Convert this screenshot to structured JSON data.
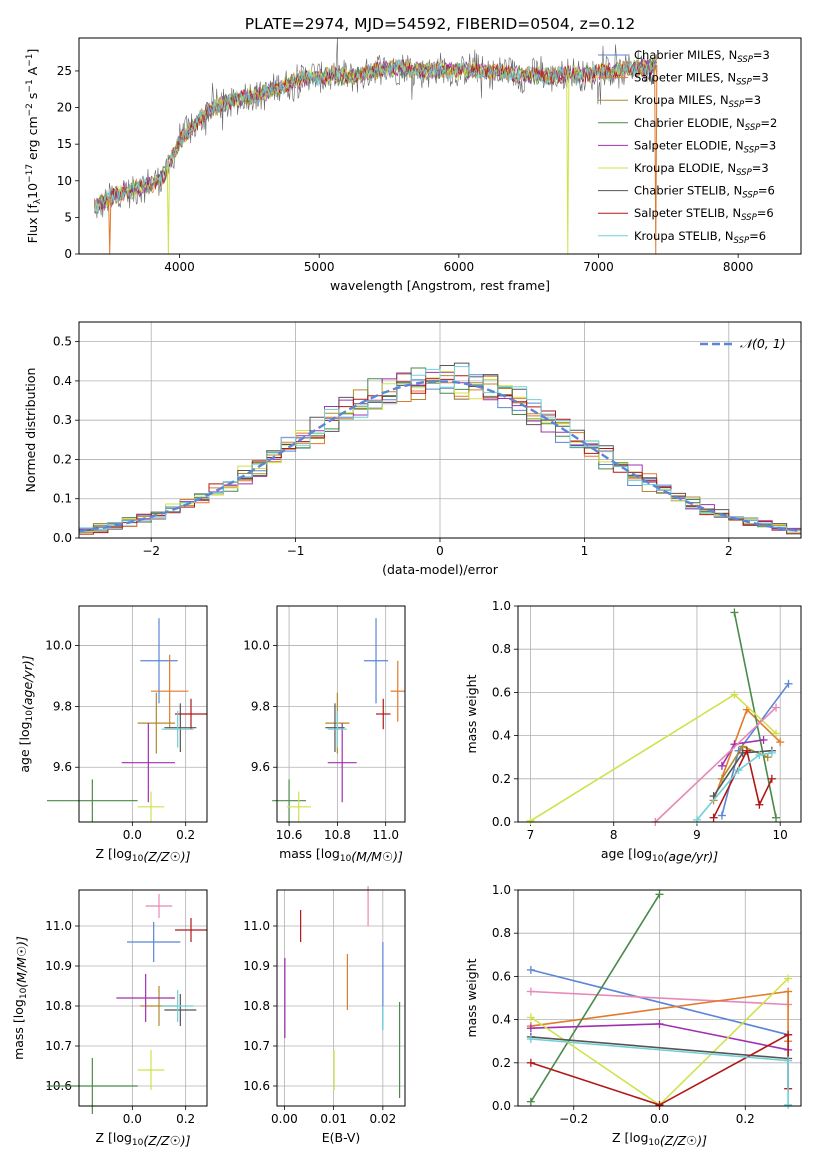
{
  "figure": {
    "title": "PLATE=2974, MJD=54592, FIBERID=0504, z=0.12"
  },
  "colors": {
    "chabrier_miles": "#5b86d6",
    "salpeter_miles": "#e27a2c",
    "kroupa_miles": "#b08a2e",
    "chabrier_elodie": "#4a8a4a",
    "salpeter_elodie": "#a030b0",
    "kroupa_elodie": "#cfe24a",
    "chabrier_stelib": "#555555",
    "salpeter_stelib": "#b01818",
    "kroupa_stelib": "#6fd0d8",
    "pink": "#e888b8",
    "normal_curve": "#5b86d6"
  },
  "chart_data": [
    {
      "id": "spectrum",
      "type": "line",
      "xlabel": "wavelength [Angstrom, rest frame]",
      "ylabel": "Flux [f_λ10^-17 erg cm^-2 s^-1 A^-1]",
      "xlim": [
        3280,
        8450
      ],
      "ylim": [
        0,
        29.5
      ],
      "xticks": [
        4000,
        5000,
        6000,
        7000,
        8000
      ],
      "yticks": [
        0,
        5,
        10,
        15,
        20,
        25
      ],
      "legend_position": "upper-right",
      "legend": [
        {
          "key": "chabrier_miles",
          "label": "Chabrier MILES, N",
          "sub": "SSP",
          "suffix": "=3"
        },
        {
          "key": "salpeter_miles",
          "label": "Salpeter MILES, N",
          "sub": "SSP",
          "suffix": "=3"
        },
        {
          "key": "kroupa_miles",
          "label": "Kroupa MILES, N",
          "sub": "SSP",
          "suffix": "=3"
        },
        {
          "key": "chabrier_elodie",
          "label": "Chabrier ELODIE, N",
          "sub": "SSP",
          "suffix": "=2"
        },
        {
          "key": "salpeter_elodie",
          "label": "Salpeter ELODIE, N",
          "sub": "SSP",
          "suffix": "=3"
        },
        {
          "key": "kroupa_elodie",
          "label": "Kroupa ELODIE, N",
          "sub": "SSP",
          "suffix": "=3"
        },
        {
          "key": "chabrier_stelib",
          "label": "Chabrier STELIB, N",
          "sub": "SSP",
          "suffix": "=6"
        },
        {
          "key": "salpeter_stelib",
          "label": "Salpeter STELIB, N",
          "sub": "SSP",
          "suffix": "=6"
        },
        {
          "key": "kroupa_stelib",
          "label": "Kroupa STELIB, N",
          "sub": "SSP",
          "suffix": "=6"
        }
      ],
      "continuum": [
        [
          3390,
          6.5
        ],
        [
          3500,
          7.5
        ],
        [
          3600,
          8.5
        ],
        [
          3700,
          9
        ],
        [
          3800,
          9.5
        ],
        [
          3900,
          11
        ],
        [
          4000,
          15.5
        ],
        [
          4100,
          17.5
        ],
        [
          4200,
          19.5
        ],
        [
          4300,
          20.5
        ],
        [
          4400,
          21
        ],
        [
          4500,
          21.5
        ],
        [
          4600,
          22
        ],
        [
          4700,
          22.5
        ],
        [
          4800,
          23.5
        ],
        [
          4900,
          24
        ],
        [
          5000,
          24.2
        ],
        [
          5100,
          24.5
        ],
        [
          5200,
          24
        ],
        [
          5300,
          24.5
        ],
        [
          5400,
          25
        ],
        [
          5500,
          25.5
        ],
        [
          5600,
          25.3
        ],
        [
          5800,
          25
        ],
        [
          6000,
          25.2
        ],
        [
          6200,
          25
        ],
        [
          6400,
          24.6
        ],
        [
          6600,
          24.3
        ],
        [
          6800,
          24.5
        ],
        [
          7000,
          24.7
        ],
        [
          7200,
          25.2
        ],
        [
          7420,
          25.8
        ]
      ],
      "dips": [
        {
          "x": 3500,
          "y": 0,
          "series": "salpeter_miles"
        },
        {
          "x": 3920,
          "y": 0,
          "series": "kroupa_elodie"
        },
        {
          "x": 6780,
          "y": 0,
          "series": "kroupa_elodie"
        },
        {
          "x": 7410,
          "y": 0,
          "series": "salpeter_miles"
        }
      ]
    },
    {
      "id": "residuals",
      "type": "histogram",
      "xlabel": "(data-model)/error",
      "ylabel": "Normed distribution",
      "xlim": [
        -2.5,
        2.5
      ],
      "ylim": [
        0,
        0.55
      ],
      "xticks": [
        -2,
        -1,
        0,
        1,
        2
      ],
      "yticks": [
        0.0,
        0.1,
        0.2,
        0.3,
        0.4,
        0.5
      ],
      "grid": true,
      "bin_width": 0.1,
      "normal_label": "𝒩(0, 1)",
      "legend_position": "upper-right",
      "series_keys": [
        "chabrier_miles",
        "salpeter_miles",
        "kroupa_miles",
        "chabrier_elodie",
        "salpeter_elodie",
        "kroupa_elodie",
        "chabrier_stelib",
        "salpeter_stelib",
        "kroupa_stelib"
      ]
    },
    {
      "id": "age_vs_Z",
      "type": "errorbar",
      "xlabel": "Z [log10(Z/Z☉)]",
      "ylabel": "age  [log10(age/yr)]",
      "xlim": [
        -0.2,
        0.28
      ],
      "ylim": [
        9.42,
        10.13
      ],
      "xticks": [
        0.0,
        0.2
      ],
      "yticks": [
        9.6,
        9.8,
        10.0
      ],
      "grid": true,
      "points": [
        {
          "key": "chabrier_miles",
          "x": 0.1,
          "xerr": 0.07,
          "y": 9.95,
          "yerr": 0.14
        },
        {
          "key": "salpeter_miles",
          "x": 0.14,
          "xerr": 0.07,
          "y": 9.85,
          "yerr": 0.12
        },
        {
          "key": "kroupa_miles",
          "x": 0.09,
          "xerr": 0.07,
          "y": 9.745,
          "yerr": 0.1
        },
        {
          "key": "chabrier_elodie",
          "x": -0.15,
          "xerr": 0.17,
          "y": 9.49,
          "yerr": 0.07
        },
        {
          "key": "salpeter_elodie",
          "x": 0.06,
          "xerr": 0.1,
          "y": 9.615,
          "yerr": 0.13
        },
        {
          "key": "kroupa_elodie",
          "x": 0.07,
          "xerr": 0.05,
          "y": 9.47,
          "yerr": 0.05
        },
        {
          "key": "chabrier_stelib",
          "x": 0.18,
          "xerr": 0.06,
          "y": 9.73,
          "yerr": 0.08
        },
        {
          "key": "salpeter_stelib",
          "x": 0.22,
          "xerr": 0.06,
          "y": 9.775,
          "yerr": 0.05
        },
        {
          "key": "kroupa_stelib",
          "x": 0.17,
          "xerr": 0.06,
          "y": 9.725,
          "yerr": 0.06
        }
      ]
    },
    {
      "id": "age_vs_mass",
      "type": "errorbar",
      "xlabel": "mass [log10(M/M☉)]",
      "ylabel": "",
      "xlim": [
        10.55,
        11.08
      ],
      "ylim": [
        9.42,
        10.13
      ],
      "xticks": [
        10.6,
        10.8,
        11.0
      ],
      "yticks": [
        9.6,
        9.8,
        10.0
      ],
      "grid": true,
      "points": [
        {
          "key": "chabrier_miles",
          "x": 10.96,
          "xerr": 0.05,
          "y": 9.95,
          "yerr": 0.14
        },
        {
          "key": "salpeter_miles",
          "x": 11.05,
          "xerr": 0.03,
          "y": 9.85,
          "yerr": 0.1
        },
        {
          "key": "kroupa_miles",
          "x": 10.8,
          "xerr": 0.05,
          "y": 9.745,
          "yerr": 0.1
        },
        {
          "key": "chabrier_elodie",
          "x": 10.6,
          "xerr": 0.07,
          "y": 9.49,
          "yerr": 0.07
        },
        {
          "key": "salpeter_elodie",
          "x": 10.82,
          "xerr": 0.06,
          "y": 9.615,
          "yerr": 0.13
        },
        {
          "key": "kroupa_elodie",
          "x": 10.64,
          "xerr": 0.05,
          "y": 9.47,
          "yerr": 0.05
        },
        {
          "key": "chabrier_stelib",
          "x": 10.79,
          "xerr": 0.04,
          "y": 9.73,
          "yerr": 0.08
        },
        {
          "key": "salpeter_stelib",
          "x": 10.99,
          "xerr": 0.03,
          "y": 9.775,
          "yerr": 0.05
        },
        {
          "key": "kroupa_stelib",
          "x": 10.8,
          "xerr": 0.04,
          "y": 9.725,
          "yerr": 0.06
        }
      ]
    },
    {
      "id": "weight_vs_age",
      "type": "line",
      "xlabel": "age  [log10(age/yr)]",
      "ylabel": "mass weight",
      "xlim": [
        6.85,
        10.25
      ],
      "ylim": [
        0,
        1
      ],
      "xticks": [
        7,
        8,
        9,
        10
      ],
      "yticks": [
        0.0,
        0.2,
        0.4,
        0.6,
        0.8,
        1.0
      ],
      "grid": true,
      "series": [
        {
          "key": "chabrier_miles",
          "x": [
            9.3,
            9.5,
            10.1
          ],
          "y": [
            0.03,
            0.33,
            0.64
          ]
        },
        {
          "key": "salpeter_miles",
          "x": [
            9.2,
            9.6,
            10.0
          ],
          "y": [
            0.1,
            0.52,
            0.37
          ]
        },
        {
          "key": "kroupa_miles",
          "x": [
            9.3,
            9.55,
            9.85
          ],
          "y": [
            0.2,
            0.35,
            0.3
          ]
        },
        {
          "key": "chabrier_elodie",
          "x": [
            9.45,
            9.95
          ],
          "y": [
            0.97,
            0.02
          ]
        },
        {
          "key": "salpeter_elodie",
          "x": [
            9.3,
            9.45,
            9.8
          ],
          "y": [
            0.26,
            0.36,
            0.38
          ]
        },
        {
          "key": "kroupa_elodie",
          "x": [
            7.0,
            9.45,
            9.95
          ],
          "y": [
            0.005,
            0.59,
            0.41
          ]
        },
        {
          "key": "chabrier_stelib",
          "x": [
            9.2,
            9.55,
            9.9
          ],
          "y": [
            0.12,
            0.32,
            0.33
          ]
        },
        {
          "key": "salpeter_stelib",
          "x": [
            9.2,
            9.6,
            9.75,
            9.9
          ],
          "y": [
            0.02,
            0.33,
            0.08,
            0.2
          ]
        },
        {
          "key": "kroupa_stelib",
          "x": [
            9.0,
            9.5,
            9.75,
            9.9
          ],
          "y": [
            0.01,
            0.24,
            0.31,
            0.32
          ]
        },
        {
          "key": "pink",
          "x": [
            8.5,
            9.95
          ],
          "y": [
            0.0,
            0.53
          ]
        }
      ]
    },
    {
      "id": "mass_vs_Z",
      "type": "errorbar",
      "xlabel": "Z [log10(Z/Z☉)]",
      "ylabel": "mass [log10(M/M☉)]",
      "xlim": [
        -0.2,
        0.28
      ],
      "ylim": [
        10.55,
        11.09
      ],
      "xticks": [
        0.0,
        0.2
      ],
      "yticks": [
        10.6,
        10.7,
        10.8,
        10.9,
        11.0
      ],
      "grid": true,
      "points": [
        {
          "key": "chabrier_miles",
          "x": 0.08,
          "xerr": 0.1,
          "y": 10.96,
          "yerr": 0.05
        },
        {
          "key": "pink",
          "x": 0.1,
          "xerr": 0.05,
          "y": 11.05,
          "yerr": 0.03
        },
        {
          "key": "kroupa_miles",
          "x": 0.1,
          "xerr": 0.07,
          "y": 10.8,
          "yerr": 0.05
        },
        {
          "key": "chabrier_elodie",
          "x": -0.15,
          "xerr": 0.17,
          "y": 10.6,
          "yerr": 0.07
        },
        {
          "key": "salpeter_elodie",
          "x": 0.05,
          "xerr": 0.11,
          "y": 10.82,
          "yerr": 0.06
        },
        {
          "key": "kroupa_elodie",
          "x": 0.07,
          "xerr": 0.05,
          "y": 10.64,
          "yerr": 0.05
        },
        {
          "key": "chabrier_stelib",
          "x": 0.18,
          "xerr": 0.06,
          "y": 10.79,
          "yerr": 0.04
        },
        {
          "key": "salpeter_stelib",
          "x": 0.22,
          "xerr": 0.06,
          "y": 10.99,
          "yerr": 0.03
        },
        {
          "key": "kroupa_stelib",
          "x": 0.17,
          "xerr": 0.06,
          "y": 10.8,
          "yerr": 0.04
        }
      ]
    },
    {
      "id": "mass_vs_EBV",
      "type": "errorbar",
      "xlabel": "E(B-V)",
      "ylabel": "",
      "xlim": [
        -0.0015,
        0.0245
      ],
      "ylim": [
        10.55,
        11.09
      ],
      "xticks": [
        0.0,
        0.01,
        0.02
      ],
      "yticks": [
        10.6,
        10.7,
        10.8,
        10.9,
        11.0
      ],
      "grid": true,
      "points": [
        {
          "key": "salpeter_stelib",
          "x": 0.0033,
          "y": 11.0,
          "yerr": 0.04
        },
        {
          "key": "pink",
          "x": 0.017,
          "y": 11.05,
          "yerr": 0.05
        },
        {
          "key": "salpeter_miles",
          "x": 0.0128,
          "y": 10.86,
          "yerr": 0.07
        },
        {
          "key": "chabrier_miles",
          "x": 0.02,
          "y": 10.85,
          "yerr": 0.11
        },
        {
          "key": "kroupa_stelib",
          "x": 0.02,
          "y": 10.77,
          "yerr": 0.03
        },
        {
          "key": "salpeter_elodie",
          "x": 0.0001,
          "y": 10.82,
          "yerr": 0.1
        },
        {
          "key": "kroupa_elodie",
          "x": 0.0101,
          "y": 10.64,
          "yerr": 0.05
        },
        {
          "key": "chabrier_elodie",
          "x": 0.0234,
          "y": 10.69,
          "yerr": 0.12
        }
      ]
    },
    {
      "id": "weight_vs_Z",
      "type": "line",
      "xlabel": "Z [log10(Z/Z☉)]",
      "ylabel": "mass weight",
      "xlim": [
        -0.33,
        0.33
      ],
      "ylim": [
        0,
        1
      ],
      "xticks": [
        -0.2,
        0.0,
        0.2
      ],
      "yticks": [
        0.0,
        0.2,
        0.4,
        0.6,
        0.8,
        1.0
      ],
      "grid": true,
      "series": [
        {
          "key": "chabrier_miles",
          "x": [
            -0.3,
            0.3
          ],
          "y": [
            0.63,
            0.33
          ]
        },
        {
          "key": "pink",
          "x": [
            -0.3,
            0.3
          ],
          "y": [
            0.53,
            0.47
          ]
        },
        {
          "key": "salpeter_miles",
          "x": [
            -0.3,
            0.3,
            0.3
          ],
          "y": [
            0.37,
            0.53,
            0.3
          ]
        },
        {
          "key": "chabrier_elodie",
          "x": [
            -0.3,
            0.0
          ],
          "y": [
            0.02,
            0.98
          ]
        },
        {
          "key": "salpeter_elodie",
          "x": [
            -0.3,
            0.0,
            0.3
          ],
          "y": [
            0.36,
            0.38,
            0.26
          ]
        },
        {
          "key": "kroupa_elodie",
          "x": [
            -0.3,
            0.0,
            0.3
          ],
          "y": [
            0.41,
            0.005,
            0.59
          ]
        },
        {
          "key": "chabrier_stelib",
          "x": [
            -0.3,
            0.3
          ],
          "y": [
            0.32,
            0.22
          ]
        },
        {
          "key": "salpeter_stelib",
          "x": [
            -0.3,
            0.0,
            0.3,
            0.3
          ],
          "y": [
            0.2,
            0.005,
            0.33,
            0.08
          ]
        },
        {
          "key": "kroupa_stelib",
          "x": [
            -0.3,
            0.3,
            0.3
          ],
          "y": [
            0.31,
            0.21,
            0.005
          ]
        }
      ]
    }
  ]
}
